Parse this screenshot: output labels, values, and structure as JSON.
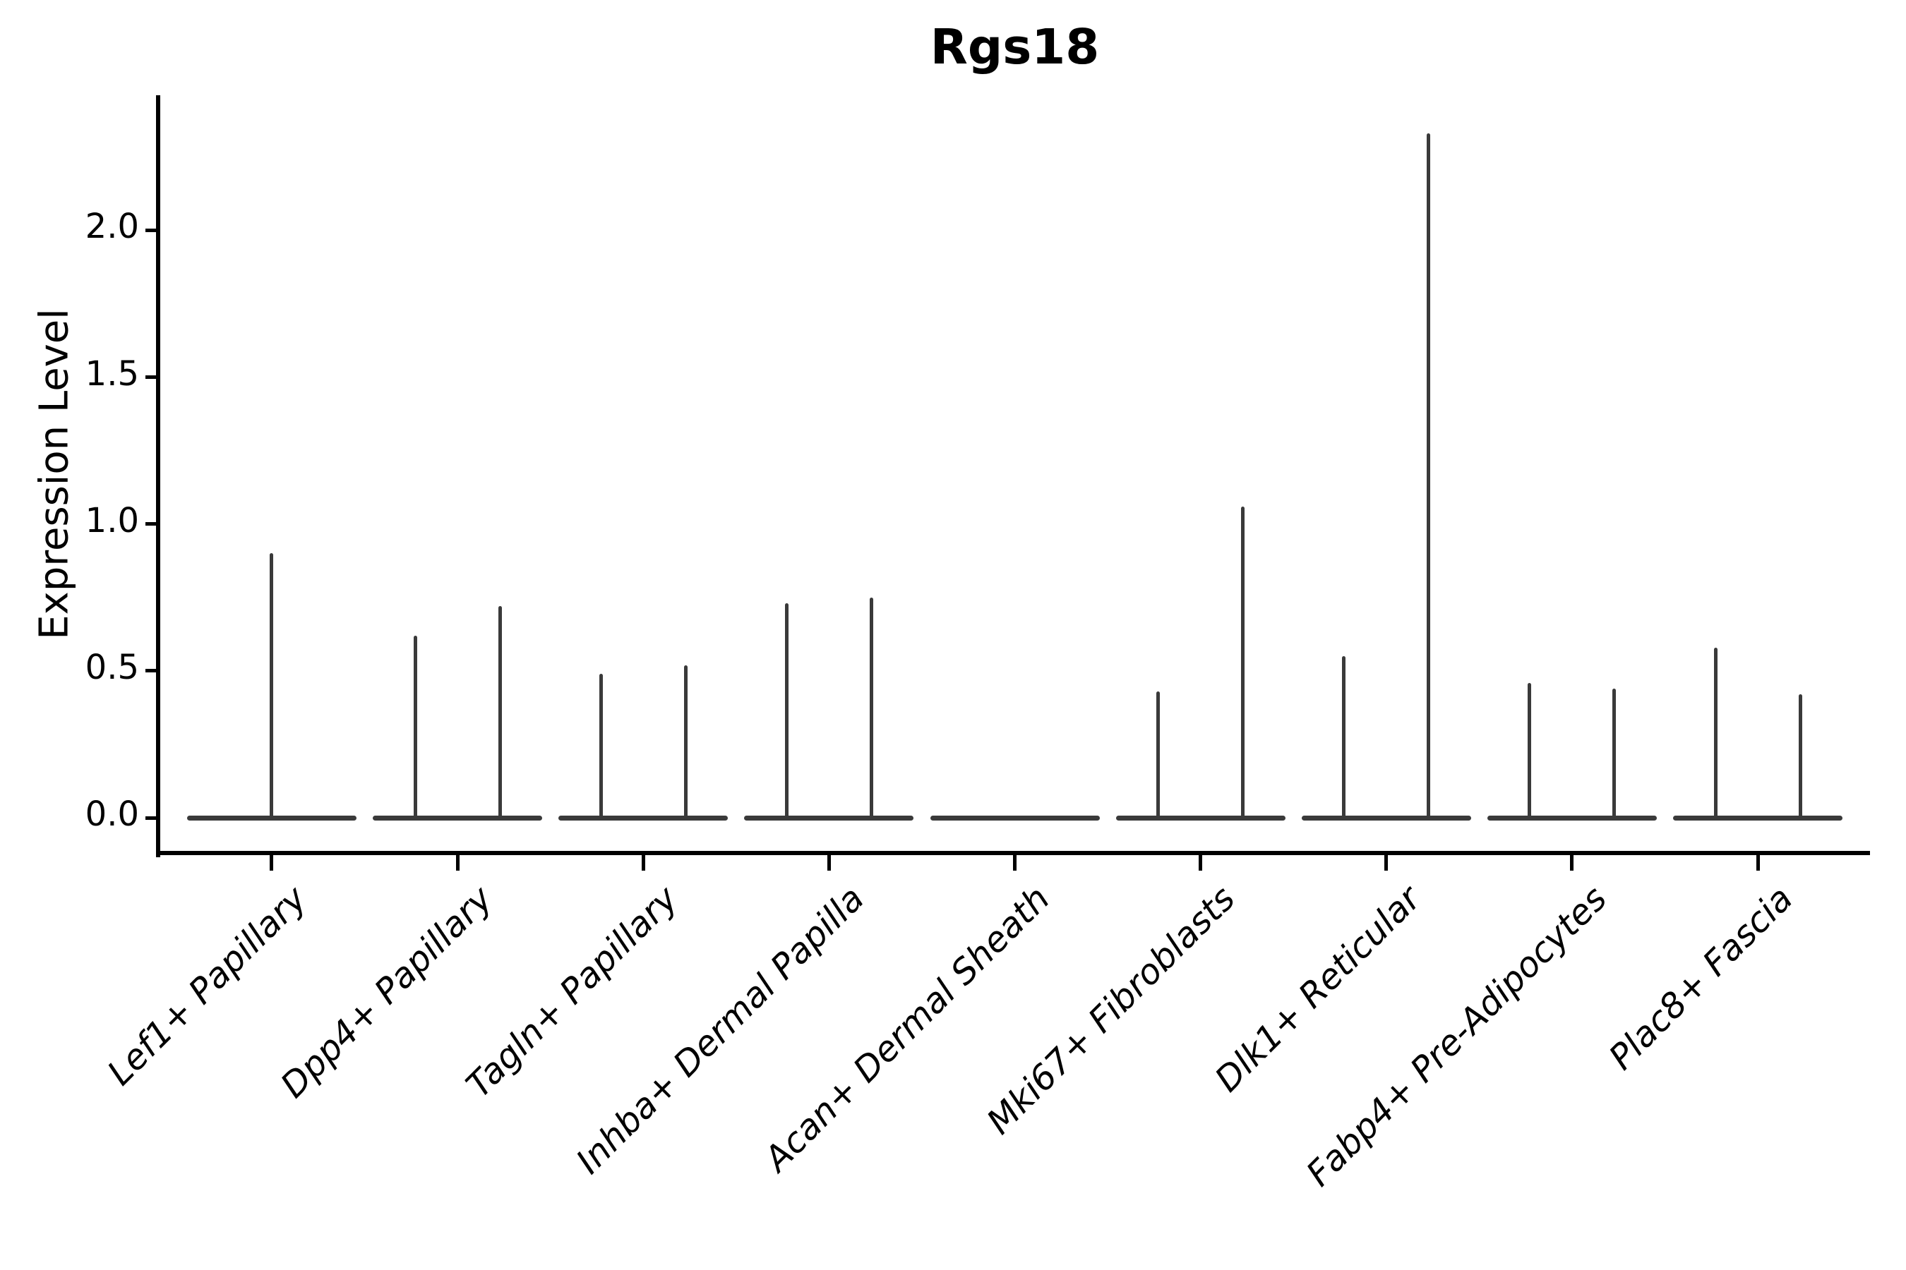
{
  "chart_data": {
    "type": "violin",
    "title": "Rgs18",
    "xlabel": "",
    "ylabel": "Expression Level",
    "grid": false,
    "legend": null,
    "ylim": [
      -0.12,
      2.46
    ],
    "yticks": [
      0.0,
      0.5,
      1.0,
      1.5,
      2.0
    ],
    "ytick_labels": [
      "0.0",
      "0.5",
      "1.0",
      "1.5",
      "2.0"
    ],
    "categories": [
      "Lef1+ Papillary",
      "Dpp4+ Papillary",
      "Tagln+ Papillary",
      "Inhba+ Dermal Papilla",
      "Acan+ Dermal Sheath",
      "Mki67+ Fibroblasts",
      "Dlk1+ Reticular",
      "Fabp4+ Pre-Adipocytes",
      "Plac8+ Fascia"
    ],
    "groups": [
      {
        "label": "Lef1+ Papillary",
        "violins": [
          {
            "pos": "center",
            "max": 0.9
          }
        ]
      },
      {
        "label": "Dpp4+ Papillary",
        "violins": [
          {
            "pos": "left",
            "max": 0.62
          },
          {
            "pos": "right",
            "max": 0.72
          }
        ]
      },
      {
        "label": "Tagln+ Papillary",
        "violins": [
          {
            "pos": "left",
            "max": 0.49
          },
          {
            "pos": "right",
            "max": 0.52
          }
        ]
      },
      {
        "label": "Inhba+ Dermal Papilla",
        "violins": [
          {
            "pos": "left",
            "max": 0.73
          },
          {
            "pos": "right",
            "max": 0.75
          }
        ]
      },
      {
        "label": "Acan+ Dermal Sheath",
        "violins": []
      },
      {
        "label": "Mki67+ Fibroblasts",
        "violins": [
          {
            "pos": "left",
            "max": 0.43
          },
          {
            "pos": "right",
            "max": 1.06
          }
        ]
      },
      {
        "label": "Dlk1+ Reticular",
        "violins": [
          {
            "pos": "left",
            "max": 0.55
          },
          {
            "pos": "right",
            "max": 2.33
          }
        ]
      },
      {
        "label": "Fabp4+ Pre-Adipocytes",
        "violins": [
          {
            "pos": "left",
            "max": 0.46
          },
          {
            "pos": "right",
            "max": 0.44
          }
        ]
      },
      {
        "label": "Plac8+ Fascia",
        "violins": [
          {
            "pos": "left",
            "max": 0.58
          },
          {
            "pos": "right",
            "max": 0.42
          }
        ]
      }
    ],
    "colors": {
      "violin_line": "#3a3a3a",
      "axis": "#000000",
      "text": "#000000",
      "background": "#ffffff"
    }
  }
}
